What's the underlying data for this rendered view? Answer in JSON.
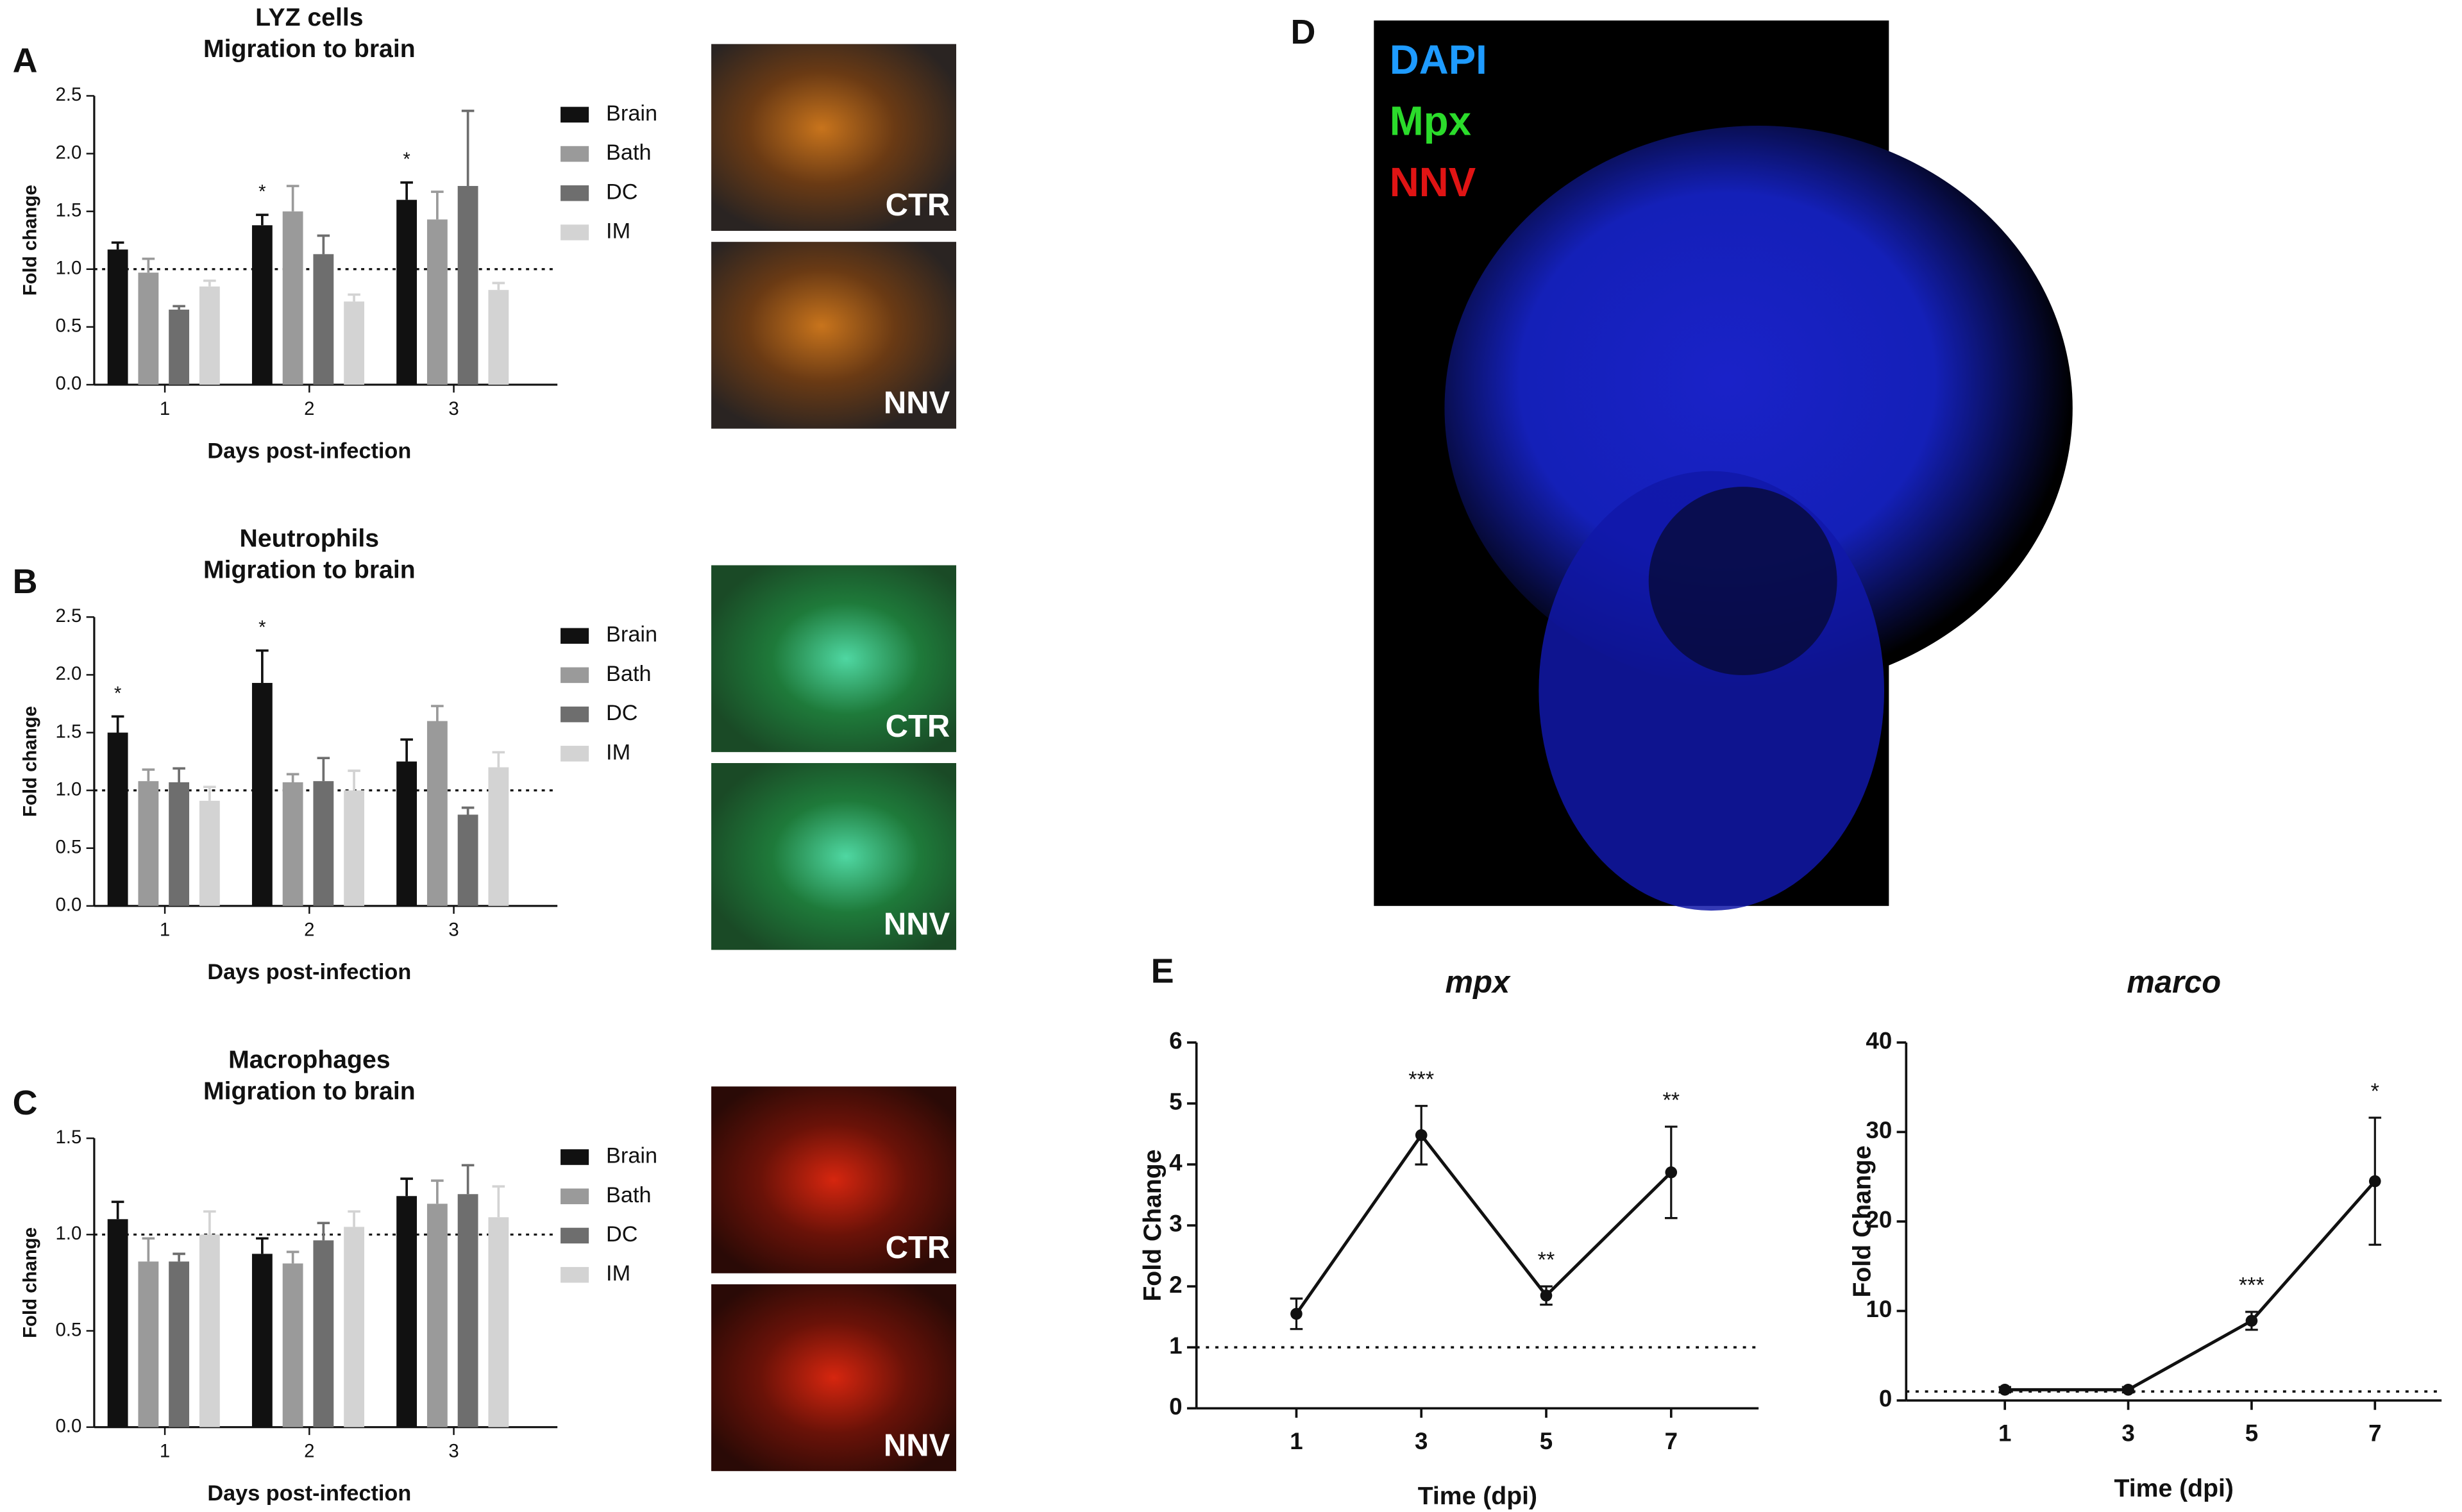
{
  "chart_data": [
    {
      "type": "bar",
      "panel": "A",
      "title": "LYZ cells",
      "subtitle": "Migration to brain",
      "xlabel": "Days post-infection",
      "ylabel": "Fold change",
      "categories": [
        "1",
        "2",
        "3"
      ],
      "ylim": [
        0,
        2.5
      ],
      "yticks": [
        {
          "value": 0,
          "label": "0.0"
        },
        0.5,
        {
          "value": 1,
          "label": "1.0"
        },
        1.5,
        {
          "value": 2,
          "label": "2.0"
        },
        2.5
      ],
      "reference_line": 1,
      "series": [
        {
          "name": "Brain",
          "color": "#111111",
          "values": [
            1.17,
            1.38,
            1.6
          ],
          "errors": [
            0.06,
            0.09,
            0.15
          ],
          "significance": [
            null,
            "*",
            "*"
          ]
        },
        {
          "name": "Bath",
          "color": "#9a9a9a",
          "values": [
            0.97,
            1.5,
            1.43
          ],
          "errors": [
            0.12,
            0.22,
            0.24
          ]
        },
        {
          "name": "DC",
          "color": "#6e6e6e",
          "values": [
            0.65,
            1.13,
            1.72
          ],
          "errors": [
            0.03,
            0.16,
            0.65
          ]
        },
        {
          "name": "IM",
          "color": "#d3d3d3",
          "values": [
            0.85,
            0.72,
            0.82
          ],
          "errors": [
            0.05,
            0.06,
            0.06
          ]
        }
      ],
      "images": [
        "CTR",
        "NNV"
      ]
    },
    {
      "type": "bar",
      "panel": "B",
      "title": "Neutrophils",
      "subtitle": "Migration to brain",
      "xlabel": "Days post-infection",
      "ylabel": "Fold change",
      "categories": [
        "1",
        "2",
        "3"
      ],
      "ylim": [
        0,
        2.5
      ],
      "yticks": [
        {
          "value": 0,
          "label": "0.0"
        },
        0.5,
        {
          "value": 1,
          "label": "1.0"
        },
        1.5,
        {
          "value": 2,
          "label": "2.0"
        },
        2.5
      ],
      "reference_line": 1,
      "series": [
        {
          "name": "Brain",
          "color": "#111111",
          "values": [
            1.5,
            1.93,
            1.25
          ],
          "errors": [
            0.14,
            0.28,
            0.19
          ],
          "significance": [
            "*",
            "*",
            null
          ]
        },
        {
          "name": "Bath",
          "color": "#9a9a9a",
          "values": [
            1.08,
            1.07,
            1.6
          ],
          "errors": [
            0.1,
            0.07,
            0.13
          ]
        },
        {
          "name": "DC",
          "color": "#6e6e6e",
          "values": [
            1.07,
            1.08,
            0.79
          ],
          "errors": [
            0.12,
            0.2,
            0.06
          ]
        },
        {
          "name": "IM",
          "color": "#d3d3d3",
          "values": [
            0.91,
            1.0,
            1.2
          ],
          "errors": [
            0.12,
            0.17,
            0.13
          ]
        }
      ],
      "images": [
        "CTR",
        "NNV"
      ]
    },
    {
      "type": "bar",
      "panel": "C",
      "title": "Macrophages",
      "subtitle": "Migration to brain",
      "xlabel": "Days post-infection",
      "ylabel": "Fold change",
      "categories": [
        "1",
        "2",
        "3"
      ],
      "ylim": [
        0,
        1.5
      ],
      "yticks": [
        {
          "value": 0,
          "label": "0.0"
        },
        0.5,
        {
          "value": 1,
          "label": "1.0"
        },
        1.5
      ],
      "reference_line": 1,
      "series": [
        {
          "name": "Brain",
          "color": "#111111",
          "values": [
            1.08,
            0.9,
            1.2
          ],
          "errors": [
            0.09,
            0.08,
            0.09
          ]
        },
        {
          "name": "Bath",
          "color": "#9a9a9a",
          "values": [
            0.86,
            0.85,
            1.16
          ],
          "errors": [
            0.12,
            0.06,
            0.12
          ]
        },
        {
          "name": "DC",
          "color": "#6e6e6e",
          "values": [
            0.86,
            0.97,
            1.21
          ],
          "errors": [
            0.04,
            0.09,
            0.15
          ]
        },
        {
          "name": "IM",
          "color": "#d3d3d3",
          "values": [
            1.0,
            1.04,
            1.09
          ],
          "errors": [
            0.12,
            0.08,
            0.16
          ]
        }
      ],
      "images": [
        "CTR",
        "NNV"
      ]
    },
    {
      "type": "line",
      "panel": "E",
      "title": "mpx",
      "xlabel": "Time (dpi)",
      "ylabel": "Fold Change",
      "x": [
        1,
        3,
        5,
        7
      ],
      "xlim": [
        -0.6,
        8.4
      ],
      "xticks": [
        1,
        3,
        5,
        7
      ],
      "ylim": [
        0,
        6
      ],
      "yticks": [
        0,
        1,
        2,
        3,
        4,
        5,
        6
      ],
      "reference_line": 1,
      "color": "#111111",
      "values": [
        1.55,
        4.48,
        1.85,
        3.87
      ],
      "errors": [
        0.25,
        0.48,
        0.15,
        0.75
      ],
      "significance": [
        null,
        "***",
        "**",
        "**"
      ]
    },
    {
      "type": "line",
      "title": "marco",
      "xlabel": "Time (dpi)",
      "ylabel": "Fold Change",
      "x": [
        1,
        3,
        5,
        7
      ],
      "xlim": [
        -0.6,
        8.08
      ],
      "xticks": [
        1,
        3,
        5,
        7
      ],
      "ylim": [
        0,
        40
      ],
      "yticks": [
        0,
        10,
        20,
        30,
        40
      ],
      "reference_line": 1,
      "color": "#111111",
      "values": [
        1.2,
        1.2,
        8.9,
        24.5
      ],
      "errors": [
        0.3,
        0.3,
        1.0,
        7.1
      ],
      "significance": [
        null,
        null,
        "***",
        "*"
      ]
    }
  ],
  "image_panel": {
    "panel": "D",
    "channels": [
      {
        "name": "DAPI",
        "color": "#1e9bff"
      },
      {
        "name": "Mpx",
        "color": "#2bdc2b"
      },
      {
        "name": "NNV",
        "color": "#e01414"
      }
    ]
  }
}
